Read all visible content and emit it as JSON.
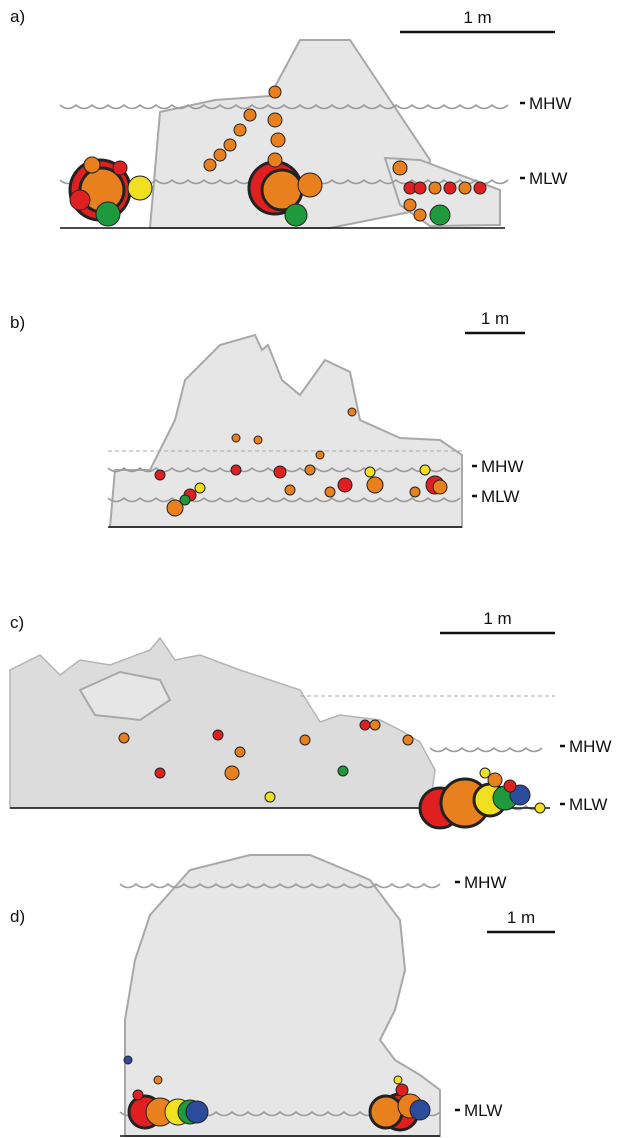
{
  "panels": [
    {
      "label": "a)",
      "scale_label": "1 m",
      "mhw_label": "MHW",
      "mlw_label": "MLW"
    },
    {
      "label": "b)",
      "scale_label": "1 m",
      "mhw_label": "MHW",
      "mlw_label": "MLW"
    },
    {
      "label": "c)",
      "scale_label": "1 m",
      "mhw_label": "MHW",
      "mlw_label": "MLW"
    },
    {
      "label": "d)",
      "scale_label": "1 m",
      "mhw_label": "MHW",
      "mlw_label": "MLW"
    }
  ]
}
